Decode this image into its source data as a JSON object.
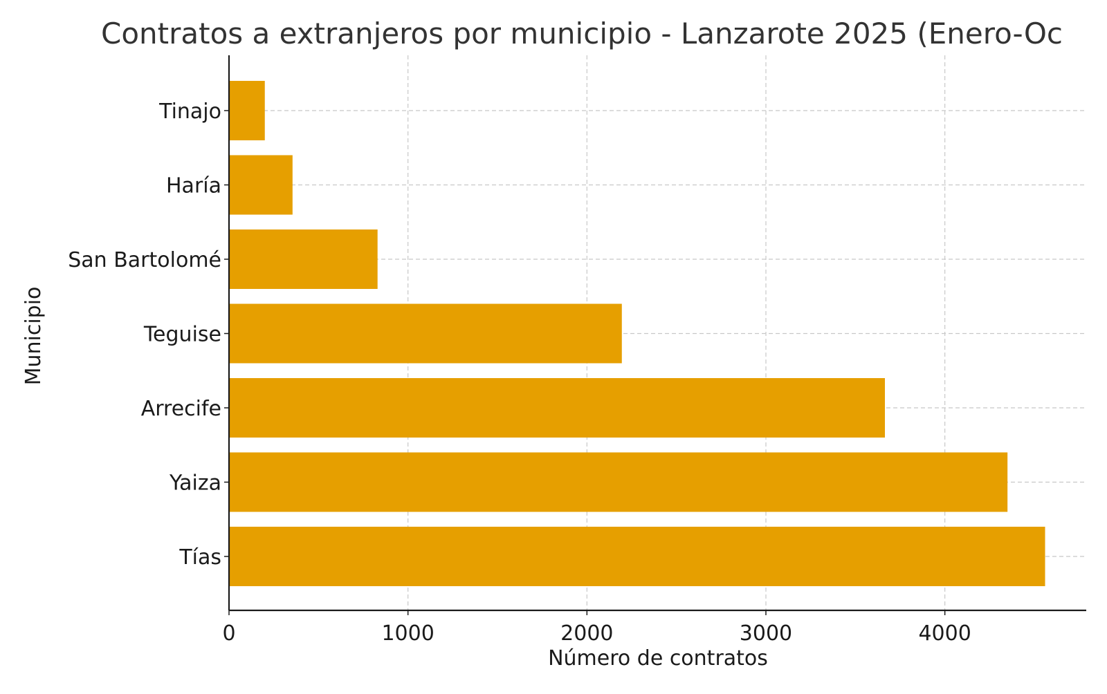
{
  "chart_data": {
    "type": "bar",
    "orientation": "horizontal",
    "title": "Contratos a extranjeros por municipio - Lanzarote 2025 (Enero-Oc",
    "xlabel": "Número de contratos",
    "ylabel": "Municipio",
    "categories": [
      "Tinajo",
      "Haría",
      "San Bartolomé",
      "Teguise",
      "Arrecife",
      "Yaiza",
      "Tías"
    ],
    "values": [
      200,
      355,
      830,
      2195,
      3665,
      4350,
      4560
    ],
    "xlim": [
      0,
      4790
    ],
    "xticks": [
      0,
      1000,
      2000,
      3000,
      4000
    ],
    "xtick_labels": [
      "0",
      "1000",
      "2000",
      "3000",
      "4000"
    ],
    "grid": true,
    "bar_color": "#E69F00"
  }
}
